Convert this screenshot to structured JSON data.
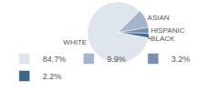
{
  "chart_data": {
    "type": "pie",
    "categories": [
      "WHITE",
      "ASIAN",
      "HISPANIC",
      "BLACK"
    ],
    "values": [
      84.7,
      9.9,
      3.2,
      2.2
    ],
    "value_labels": [
      "84.7%",
      "9.9%",
      "3.2%",
      "2.2%"
    ],
    "colors": [
      "#dfe5ec",
      "#a3b5ca",
      "#7690ae",
      "#3b6690"
    ],
    "legend": "bottom"
  }
}
